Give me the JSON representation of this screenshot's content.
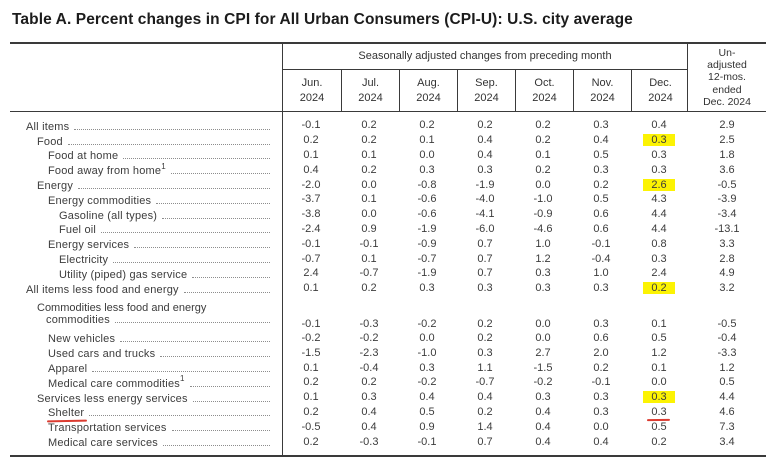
{
  "title": "Table A. Percent changes in CPI for All Urban Consumers (CPI-U): U.S. city average",
  "annotation_colors": {
    "highlight": "#fcf303",
    "red_mark": "#db3b30"
  },
  "table": {
    "group_header": "Seasonally adjusted changes from preceding month",
    "months": [
      {
        "abbr": "Jun.",
        "year": "2024"
      },
      {
        "abbr": "Jul.",
        "year": "2024"
      },
      {
        "abbr": "Aug.",
        "year": "2024"
      },
      {
        "abbr": "Sep.",
        "year": "2024"
      },
      {
        "abbr": "Oct.",
        "year": "2024"
      },
      {
        "abbr": "Nov.",
        "year": "2024"
      },
      {
        "abbr": "Dec.",
        "year": "2024"
      }
    ],
    "unadjusted_header": "Un-\nadjusted\n12-mos.\nended\nDec. 2024",
    "rows": [
      {
        "label": "All items",
        "indent": 0,
        "values": [
          "-0.1",
          "0.2",
          "0.2",
          "0.2",
          "0.2",
          "0.3",
          "0.4",
          "2.9"
        ]
      },
      {
        "label": "Food",
        "indent": 1,
        "highlight_dec": true,
        "values": [
          "0.2",
          "0.2",
          "0.1",
          "0.4",
          "0.2",
          "0.4",
          "0.3",
          "2.5"
        ]
      },
      {
        "label": "Food at home",
        "indent": 2,
        "values": [
          "0.1",
          "0.1",
          "0.0",
          "0.4",
          "0.1",
          "0.5",
          "0.3",
          "1.8"
        ]
      },
      {
        "label": "Food away from home",
        "sup": "1",
        "indent": 2,
        "values": [
          "0.4",
          "0.2",
          "0.3",
          "0.3",
          "0.2",
          "0.3",
          "0.3",
          "3.6"
        ]
      },
      {
        "label": "Energy",
        "indent": 1,
        "highlight_dec": true,
        "values": [
          "-2.0",
          "0.0",
          "-0.8",
          "-1.9",
          "0.0",
          "0.2",
          "2.6",
          "-0.5"
        ]
      },
      {
        "label": "Energy commodities",
        "indent": 2,
        "values": [
          "-3.7",
          "0.1",
          "-0.6",
          "-4.0",
          "-1.0",
          "0.5",
          "4.3",
          "-3.9"
        ]
      },
      {
        "label": "Gasoline (all types)",
        "indent": 3,
        "values": [
          "-3.8",
          "0.0",
          "-0.6",
          "-4.1",
          "-0.9",
          "0.6",
          "4.4",
          "-3.4"
        ]
      },
      {
        "label": "Fuel oil",
        "indent": 3,
        "values": [
          "-2.4",
          "0.9",
          "-1.9",
          "-6.0",
          "-4.6",
          "0.6",
          "4.4",
          "-13.1"
        ]
      },
      {
        "label": "Energy services",
        "indent": 2,
        "values": [
          "-0.1",
          "-0.1",
          "-0.9",
          "0.7",
          "1.0",
          "-0.1",
          "0.8",
          "3.3"
        ]
      },
      {
        "label": "Electricity",
        "indent": 3,
        "values": [
          "-0.7",
          "0.1",
          "-0.7",
          "0.7",
          "1.2",
          "-0.4",
          "0.3",
          "2.8"
        ]
      },
      {
        "label": "Utility (piped) gas service",
        "indent": 3,
        "values": [
          "2.4",
          "-0.7",
          "-1.9",
          "0.7",
          "0.3",
          "1.0",
          "2.4",
          "4.9"
        ]
      },
      {
        "label": "All items less food and energy",
        "indent": 0,
        "highlight_dec": true,
        "values": [
          "0.1",
          "0.2",
          "0.3",
          "0.3",
          "0.3",
          "0.3",
          "0.2",
          "3.2"
        ]
      },
      {
        "spacer": true
      },
      {
        "label": "Commodities less food and energy",
        "label2": "commodities",
        "two_line": true,
        "indent": 1,
        "values": [
          "-0.1",
          "-0.3",
          "-0.2",
          "0.2",
          "0.0",
          "0.3",
          "0.1",
          "-0.5"
        ]
      },
      {
        "label": "New vehicles",
        "indent": 2,
        "values": [
          "-0.2",
          "-0.2",
          "0.0",
          "0.2",
          "0.0",
          "0.6",
          "0.5",
          "-0.4"
        ]
      },
      {
        "label": "Used cars and trucks",
        "indent": 2,
        "values": [
          "-1.5",
          "-2.3",
          "-1.0",
          "0.3",
          "2.7",
          "2.0",
          "1.2",
          "-3.3"
        ]
      },
      {
        "label": "Apparel",
        "indent": 2,
        "values": [
          "0.1",
          "-0.4",
          "0.3",
          "1.1",
          "-1.5",
          "0.2",
          "0.1",
          "1.2"
        ]
      },
      {
        "label": "Medical care commodities",
        "sup": "1",
        "indent": 2,
        "values": [
          "0.2",
          "0.2",
          "-0.2",
          "-0.7",
          "-0.2",
          "-0.1",
          "0.0",
          "0.5"
        ]
      },
      {
        "label": "Services less energy services",
        "indent": 1,
        "highlight_dec": true,
        "values": [
          "0.1",
          "0.3",
          "0.4",
          "0.4",
          "0.3",
          "0.3",
          "0.3",
          "4.4"
        ]
      },
      {
        "label": "Shelter",
        "indent": 2,
        "red_underline_label": true,
        "values": [
          "0.2",
          "0.4",
          "0.5",
          "0.2",
          "0.4",
          "0.3",
          "0.3",
          "4.6"
        ]
      },
      {
        "label": "Transportation services",
        "indent": 2,
        "red_overline_dec": true,
        "values": [
          "-0.5",
          "0.4",
          "0.9",
          "1.4",
          "0.4",
          "0.0",
          "0.5",
          "7.3"
        ]
      },
      {
        "label": "Medical care services",
        "indent": 2,
        "values": [
          "0.2",
          "-0.3",
          "-0.1",
          "0.7",
          "0.4",
          "0.4",
          "0.2",
          "3.4"
        ]
      }
    ]
  }
}
